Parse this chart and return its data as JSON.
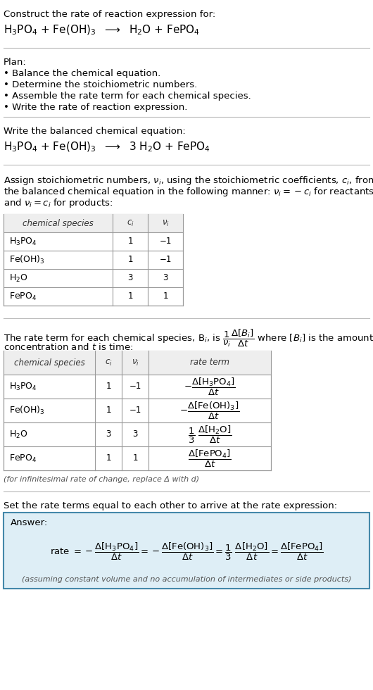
{
  "bg_color": "#ffffff",
  "text_color": "#000000",
  "title_line1": "Construct the rate of reaction expression for:",
  "plan_header": "Plan:",
  "plan_items": [
    "• Balance the chemical equation.",
    "• Determine the stoichiometric numbers.",
    "• Assemble the rate term for each chemical species.",
    "• Write the rate of reaction expression."
  ],
  "balanced_header": "Write the balanced chemical equation:",
  "stoich_intro_lines": [
    "Assign stoichiometric numbers, $\\nu_i$, using the stoichiometric coefficients, $c_i$, from",
    "the balanced chemical equation in the following manner: $\\nu_i = -c_i$ for reactants",
    "and $\\nu_i = c_i$ for products:"
  ],
  "table1_species": [
    "$\\mathregular{H_3PO_4}$",
    "$\\mathregular{Fe(OH)_3}$",
    "$\\mathregular{H_2O}$",
    "$\\mathregular{FePO_4}$"
  ],
  "table1_ci": [
    "1",
    "1",
    "3",
    "1"
  ],
  "table1_ni": [
    "−1",
    "−1",
    "3",
    "1"
  ],
  "table2_species": [
    "$\\mathregular{H_3PO_4}$",
    "$\\mathregular{Fe(OH)_3}$",
    "$\\mathregular{H_2O}$",
    "$\\mathregular{FePO_4}$"
  ],
  "table2_ci": [
    "1",
    "1",
    "3",
    "1"
  ],
  "table2_ni": [
    "−1",
    "−1",
    "3",
    "1"
  ],
  "infinitesimal_note": "(for infinitesimal rate of change, replace Δ with d)",
  "set_equal_header": "Set the rate terms equal to each other to arrive at the rate expression:",
  "answer_box_color": "#deeef6",
  "answer_border_color": "#4488aa",
  "answer_label": "Answer:",
  "assuming_note": "(assuming constant volume and no accumulation of intermediates or side products)"
}
